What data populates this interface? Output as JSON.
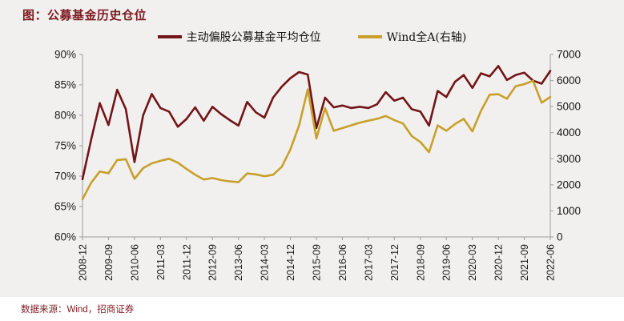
{
  "title": "图：公募基金历史仓位",
  "footer": "数据来源：Wind，招商证券",
  "colors": {
    "title_red": "#7e1a22",
    "series_red": "#721418",
    "series_gold": "#c8a02b",
    "plot_bg": "#f1f0ee",
    "axis_gray": "#9b9b9b"
  },
  "chart_data": {
    "type": "line",
    "title": "图：公募基金历史仓位",
    "grid": false,
    "legend_position": "top",
    "categories": [
      "2008-12",
      "2009-03",
      "2009-06",
      "2009-09",
      "2009-12",
      "2010-03",
      "2010-06",
      "2010-09",
      "2010-12",
      "2011-03",
      "2011-06",
      "2011-09",
      "2011-12",
      "2012-03",
      "2012-06",
      "2012-09",
      "2012-12",
      "2013-03",
      "2013-06",
      "2013-09",
      "2013-12",
      "2014-03",
      "2014-06",
      "2014-09",
      "2014-12",
      "2015-03",
      "2015-06",
      "2015-09",
      "2015-12",
      "2016-03",
      "2016-06",
      "2016-09",
      "2016-12",
      "2017-03",
      "2017-06",
      "2017-09",
      "2017-12",
      "2018-03",
      "2018-06",
      "2018-09",
      "2018-12",
      "2019-03",
      "2019-06",
      "2019-09",
      "2019-12",
      "2020-03",
      "2020-06",
      "2020-09",
      "2020-12",
      "2021-03",
      "2021-06",
      "2021-09",
      "2021-12",
      "2022-03",
      "2022-06"
    ],
    "x_tick_labels": [
      "2008-12",
      "2009-09",
      "2010-06",
      "2011-03",
      "2011-12",
      "2012-09",
      "2013-06",
      "2014-03",
      "2014-12",
      "2015-09",
      "2016-06",
      "2017-03",
      "2017-12",
      "2018-09",
      "2019-06",
      "2020-03",
      "2020-12",
      "2021-09",
      "2022-06"
    ],
    "x_label_every": 3,
    "series": [
      {
        "name": "主动偏股公募基金平均仓位",
        "axis": "left",
        "color": "#721418",
        "values": [
          69.5,
          76.0,
          82.0,
          78.4,
          84.2,
          81.0,
          72.3,
          80.0,
          83.5,
          81.2,
          80.6,
          78.1,
          79.4,
          81.3,
          79.1,
          81.4,
          80.2,
          79.2,
          78.3,
          82.2,
          80.5,
          79.6,
          82.9,
          84.7,
          86.1,
          87.1,
          86.7,
          77.9,
          82.9,
          81.3,
          81.6,
          81.2,
          81.4,
          81.2,
          81.8,
          83.8,
          82.4,
          82.9,
          81.0,
          80.6,
          78.3,
          84.0,
          83.0,
          85.5,
          86.6,
          84.5,
          86.9,
          86.4,
          88.1,
          85.8,
          86.6,
          87.0,
          85.7,
          85.2,
          87.3
        ]
      },
      {
        "name": "Wind全A(右轴)",
        "axis": "right",
        "color": "#c8a02b",
        "values": [
          1450,
          2080,
          2510,
          2440,
          2950,
          2980,
          2230,
          2640,
          2820,
          2920,
          3000,
          2850,
          2610,
          2390,
          2200,
          2260,
          2180,
          2130,
          2100,
          2435,
          2400,
          2330,
          2385,
          2690,
          3360,
          4280,
          5660,
          3780,
          4940,
          4070,
          4175,
          4280,
          4380,
          4460,
          4530,
          4640,
          4480,
          4350,
          3870,
          3640,
          3250,
          4280,
          4070,
          4330,
          4530,
          4050,
          4840,
          5456,
          5474,
          5300,
          5780,
          5860,
          5990,
          5150,
          5370
        ]
      }
    ],
    "left_axis": {
      "min": 60,
      "max": 90,
      "step": 5,
      "tick_labels": [
        "90%",
        "85%",
        "80%",
        "75%",
        "70%",
        "65%",
        "60%"
      ]
    },
    "right_axis": {
      "min": 0,
      "max": 7000,
      "step": 1000,
      "tick_labels": [
        "7000",
        "6000",
        "5000",
        "4000",
        "3000",
        "2000",
        "1000",
        "0"
      ]
    }
  }
}
